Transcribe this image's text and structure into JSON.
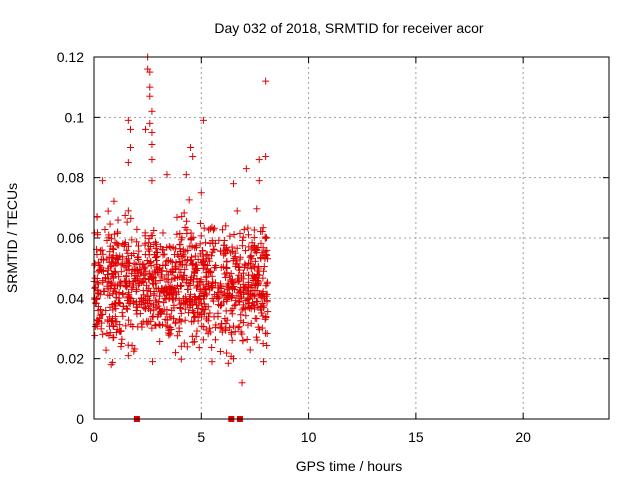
{
  "chart_data": {
    "type": "scatter",
    "title": "Day 032 of 2018, SRMTID for receiver acor",
    "xlabel": "GPS time / hours",
    "ylabel": "SRMTID / TECUs",
    "xlim": [
      0,
      24
    ],
    "ylim": [
      0,
      0.12
    ],
    "xticks": [
      0,
      5,
      10,
      15,
      20
    ],
    "xtick_labels": [
      "0",
      "5",
      "10",
      "15",
      "20"
    ],
    "yticks": [
      0,
      0.02,
      0.04,
      0.06,
      0.08,
      0.1,
      0.12
    ],
    "ytick_labels": [
      "0",
      "0.02",
      "0.04",
      "0.06",
      "0.08",
      "0.1",
      "0.12"
    ],
    "grid": true,
    "marker": "+",
    "color": "#e00000",
    "data_range_hours": [
      0,
      8.1
    ],
    "typical_range": [
      0.02,
      0.07
    ],
    "notable_points": [
      {
        "x": 0.4,
        "y": 0.079
      },
      {
        "x": 1.1,
        "y": 0.062
      },
      {
        "x": 1.6,
        "y": 0.069
      },
      {
        "x": 1.6,
        "y": 0.021
      },
      {
        "x": 0.8,
        "y": 0.018
      },
      {
        "x": 1.6,
        "y": 0.099
      },
      {
        "x": 1.7,
        "y": 0.096
      },
      {
        "x": 1.7,
        "y": 0.09
      },
      {
        "x": 1.6,
        "y": 0.085
      },
      {
        "x": 2.5,
        "y": 0.12
      },
      {
        "x": 2.5,
        "y": 0.116
      },
      {
        "x": 2.6,
        "y": 0.115
      },
      {
        "x": 2.6,
        "y": 0.11
      },
      {
        "x": 2.6,
        "y": 0.107
      },
      {
        "x": 2.7,
        "y": 0.102
      },
      {
        "x": 2.6,
        "y": 0.098
      },
      {
        "x": 2.4,
        "y": 0.096
      },
      {
        "x": 2.7,
        "y": 0.095
      },
      {
        "x": 2.7,
        "y": 0.091
      },
      {
        "x": 2.7,
        "y": 0.086
      },
      {
        "x": 2.7,
        "y": 0.079
      },
      {
        "x": 3.4,
        "y": 0.081
      },
      {
        "x": 4.3,
        "y": 0.081
      },
      {
        "x": 4.5,
        "y": 0.09
      },
      {
        "x": 4.6,
        "y": 0.087
      },
      {
        "x": 5.1,
        "y": 0.099
      },
      {
        "x": 5.0,
        "y": 0.075
      },
      {
        "x": 6.5,
        "y": 0.078
      },
      {
        "x": 7.1,
        "y": 0.083
      },
      {
        "x": 7.7,
        "y": 0.086
      },
      {
        "x": 8.0,
        "y": 0.087
      },
      {
        "x": 8.0,
        "y": 0.112
      },
      {
        "x": 7.7,
        "y": 0.079
      },
      {
        "x": 6.9,
        "y": 0.012
      },
      {
        "x": 7.9,
        "y": 0.019
      },
      {
        "x": 3.8,
        "y": 0.022
      },
      {
        "x": 5.5,
        "y": 0.019
      },
      {
        "x": 6.5,
        "y": 0.02
      }
    ],
    "zero_value_markers": [
      {
        "x": 2.0,
        "y": 0
      },
      {
        "x": 6.4,
        "y": 0
      },
      {
        "x": 6.8,
        "y": 0
      }
    ]
  }
}
